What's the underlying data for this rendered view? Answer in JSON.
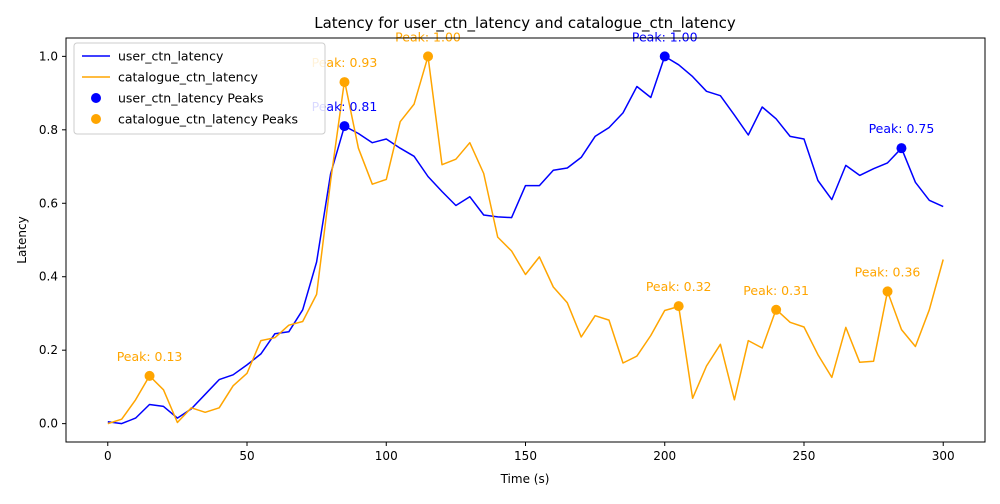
{
  "chart_data": {
    "type": "line",
    "title": "Latency for user_ctn_latency and catalogue_ctn_latency",
    "xlabel": "Time (s)",
    "ylabel": "Latency",
    "xlim": [
      -15,
      315
    ],
    "ylim": [
      -0.05,
      1.05
    ],
    "x_ticks": [
      0,
      50,
      100,
      150,
      200,
      250,
      300
    ],
    "x_tick_labels": [
      "0",
      "50",
      "100",
      "150",
      "200",
      "250",
      "300"
    ],
    "y_ticks": [
      0.0,
      0.2,
      0.4,
      0.6,
      0.8,
      1.0
    ],
    "y_tick_labels": [
      "0.0",
      "0.2",
      "0.4",
      "0.6",
      "0.8",
      "1.0"
    ],
    "grid": false,
    "legend_position": "top-left",
    "x": [
      0,
      5,
      10,
      15,
      20,
      25,
      30,
      35,
      40,
      45,
      50,
      55,
      60,
      65,
      70,
      75,
      80,
      85,
      90,
      95,
      100,
      105,
      110,
      115,
      120,
      125,
      130,
      135,
      140,
      145,
      150,
      155,
      160,
      165,
      170,
      175,
      180,
      185,
      190,
      195,
      200,
      205,
      210,
      215,
      220,
      225,
      230,
      235,
      240,
      245,
      250,
      255,
      260,
      265,
      270,
      275,
      280,
      285,
      290,
      295,
      300
    ],
    "series": [
      {
        "name": "user_ctn_latency",
        "color": "#0000ff",
        "values": [
          0.005,
          0.0,
          0.015,
          0.052,
          0.047,
          0.015,
          0.04,
          0.08,
          0.12,
          0.133,
          0.16,
          0.19,
          0.245,
          0.25,
          0.31,
          0.44,
          0.68,
          0.81,
          0.79,
          0.765,
          0.775,
          0.75,
          0.728,
          0.673,
          0.632,
          0.594,
          0.618,
          0.568,
          0.563,
          0.561,
          0.648,
          0.648,
          0.69,
          0.696,
          0.725,
          0.782,
          0.806,
          0.846,
          0.918,
          0.888,
          1.0,
          0.977,
          0.945,
          0.905,
          0.893,
          0.84,
          0.786,
          0.862,
          0.83,
          0.782,
          0.775,
          0.662,
          0.61,
          0.703,
          0.676,
          0.694,
          0.71,
          0.75,
          0.657,
          0.608,
          0.591
        ]
      },
      {
        "name": "catalogue_ctn_latency",
        "color": "#ffa500",
        "values": [
          0.0,
          0.012,
          0.065,
          0.13,
          0.092,
          0.003,
          0.043,
          0.031,
          0.043,
          0.103,
          0.137,
          0.226,
          0.234,
          0.268,
          0.278,
          0.352,
          0.66,
          0.934,
          0.75,
          0.652,
          0.665,
          0.822,
          0.87,
          1.0,
          0.705,
          0.72,
          0.765,
          0.681,
          0.508,
          0.47,
          0.406,
          0.454,
          0.372,
          0.329,
          0.236,
          0.294,
          0.282,
          0.165,
          0.184,
          0.24,
          0.308,
          0.319,
          0.069,
          0.157,
          0.216,
          0.065,
          0.226,
          0.206,
          0.311,
          0.276,
          0.263,
          0.188,
          0.126,
          0.262,
          0.167,
          0.17,
          0.36,
          0.256,
          0.21,
          0.31,
          0.447
        ]
      }
    ],
    "peaks": [
      {
        "series": "user_ctn_latency",
        "legend": "user_ctn_latency Peaks",
        "color": "#0000ff",
        "points": [
          {
            "x": 85,
            "y": 0.81,
            "label": "Peak: 0.81"
          },
          {
            "x": 200,
            "y": 1.0,
            "label": "Peak: 1.00"
          },
          {
            "x": 285,
            "y": 0.75,
            "label": "Peak: 0.75"
          }
        ]
      },
      {
        "series": "catalogue_ctn_latency",
        "legend": "catalogue_ctn_latency Peaks",
        "color": "#ffa500",
        "points": [
          {
            "x": 15,
            "y": 0.13,
            "label": "Peak: 0.13"
          },
          {
            "x": 85,
            "y": 0.93,
            "label": "Peak: 0.93"
          },
          {
            "x": 115,
            "y": 1.0,
            "label": "Peak: 1.00"
          },
          {
            "x": 205,
            "y": 0.32,
            "label": "Peak: 0.32"
          },
          {
            "x": 240,
            "y": 0.31,
            "label": "Peak: 0.31"
          },
          {
            "x": 280,
            "y": 0.36,
            "label": "Peak: 0.36"
          }
        ]
      }
    ]
  }
}
